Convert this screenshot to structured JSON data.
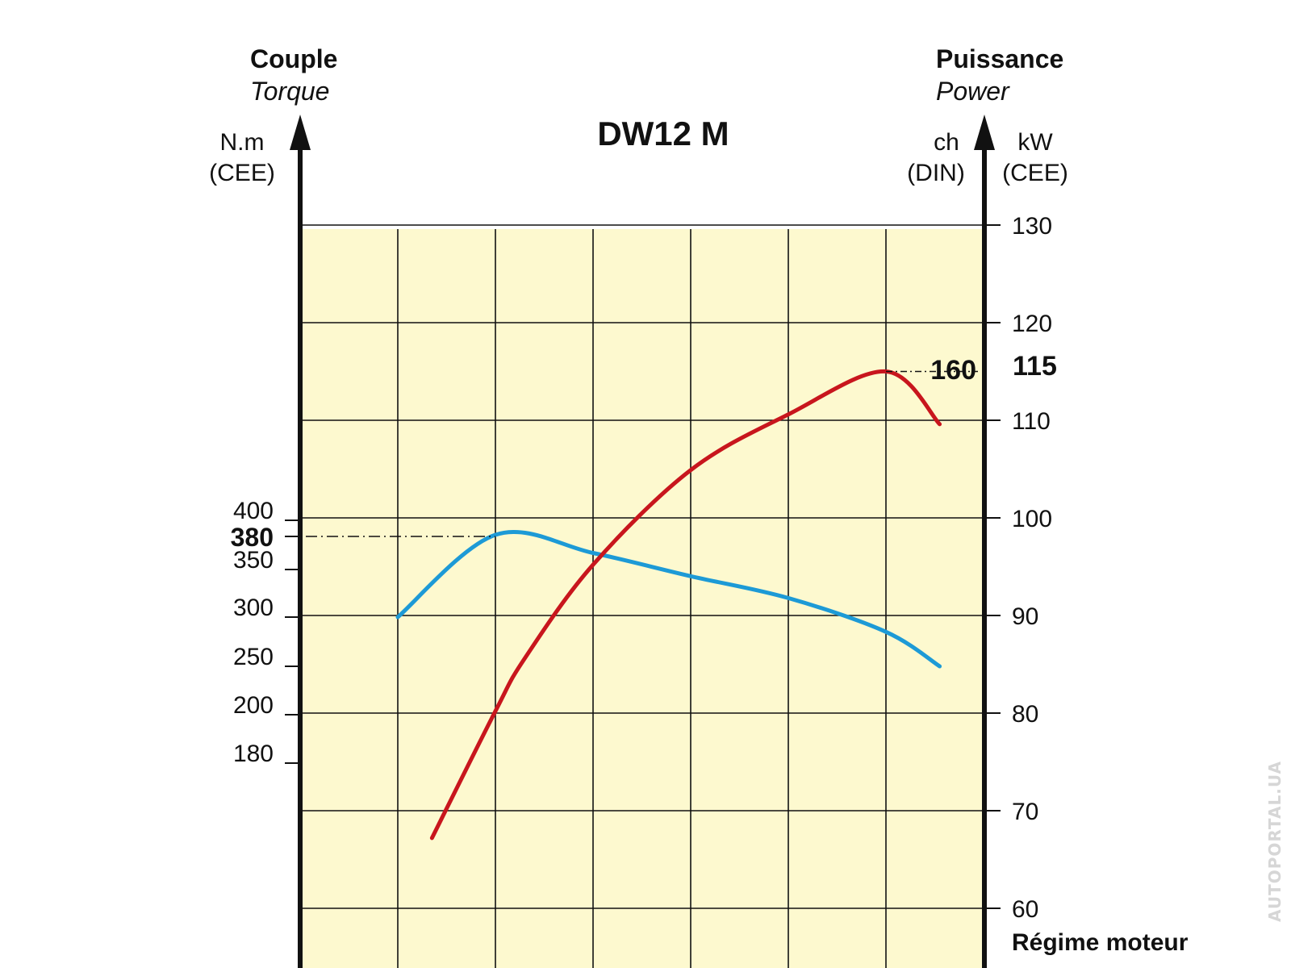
{
  "chart_data": {
    "type": "line",
    "title": "DW12 M",
    "left_axis": {
      "title": "Couple",
      "title_en": "Torque",
      "unit": "N.m",
      "unit_note": "(CEE)",
      "ticks": [
        "400",
        "350",
        "300",
        "250",
        "200",
        "180"
      ],
      "peak_label": "380"
    },
    "right_axis": {
      "title": "Puissance",
      "title_en": "Power",
      "unit_din": "ch",
      "unit_din_note": "(DIN)",
      "unit_kw": "kW",
      "unit_kw_note": "(CEE)",
      "ticks": [
        "130",
        "120",
        "110",
        "100",
        "90",
        "80",
        "70",
        "60"
      ],
      "peak_kw_label": "115",
      "peak_ch_label": "160"
    },
    "x_axis": {
      "label": "Régime moteur"
    },
    "series": [
      {
        "key": "torque",
        "color": "#1d9ad6",
        "axis": "left",
        "points": [
          [
            1,
            300
          ],
          [
            2,
            382
          ],
          [
            3,
            365
          ],
          [
            4,
            343
          ],
          [
            5,
            320
          ],
          [
            6,
            285
          ],
          [
            6.55,
            250
          ]
        ]
      },
      {
        "key": "power",
        "color": "#c8161d",
        "axis": "right",
        "points": [
          [
            1.35,
            67.2
          ],
          [
            2,
            80.2
          ],
          [
            2.3,
            85.6
          ],
          [
            3,
            95.2
          ],
          [
            4,
            104.9
          ],
          [
            5,
            110.6
          ],
          [
            6,
            115.0
          ],
          [
            6.55,
            109.6
          ]
        ]
      }
    ],
    "grid": true,
    "plot_background": "#fdf9cf",
    "watermark": "AUTOPORTAL.UA"
  }
}
